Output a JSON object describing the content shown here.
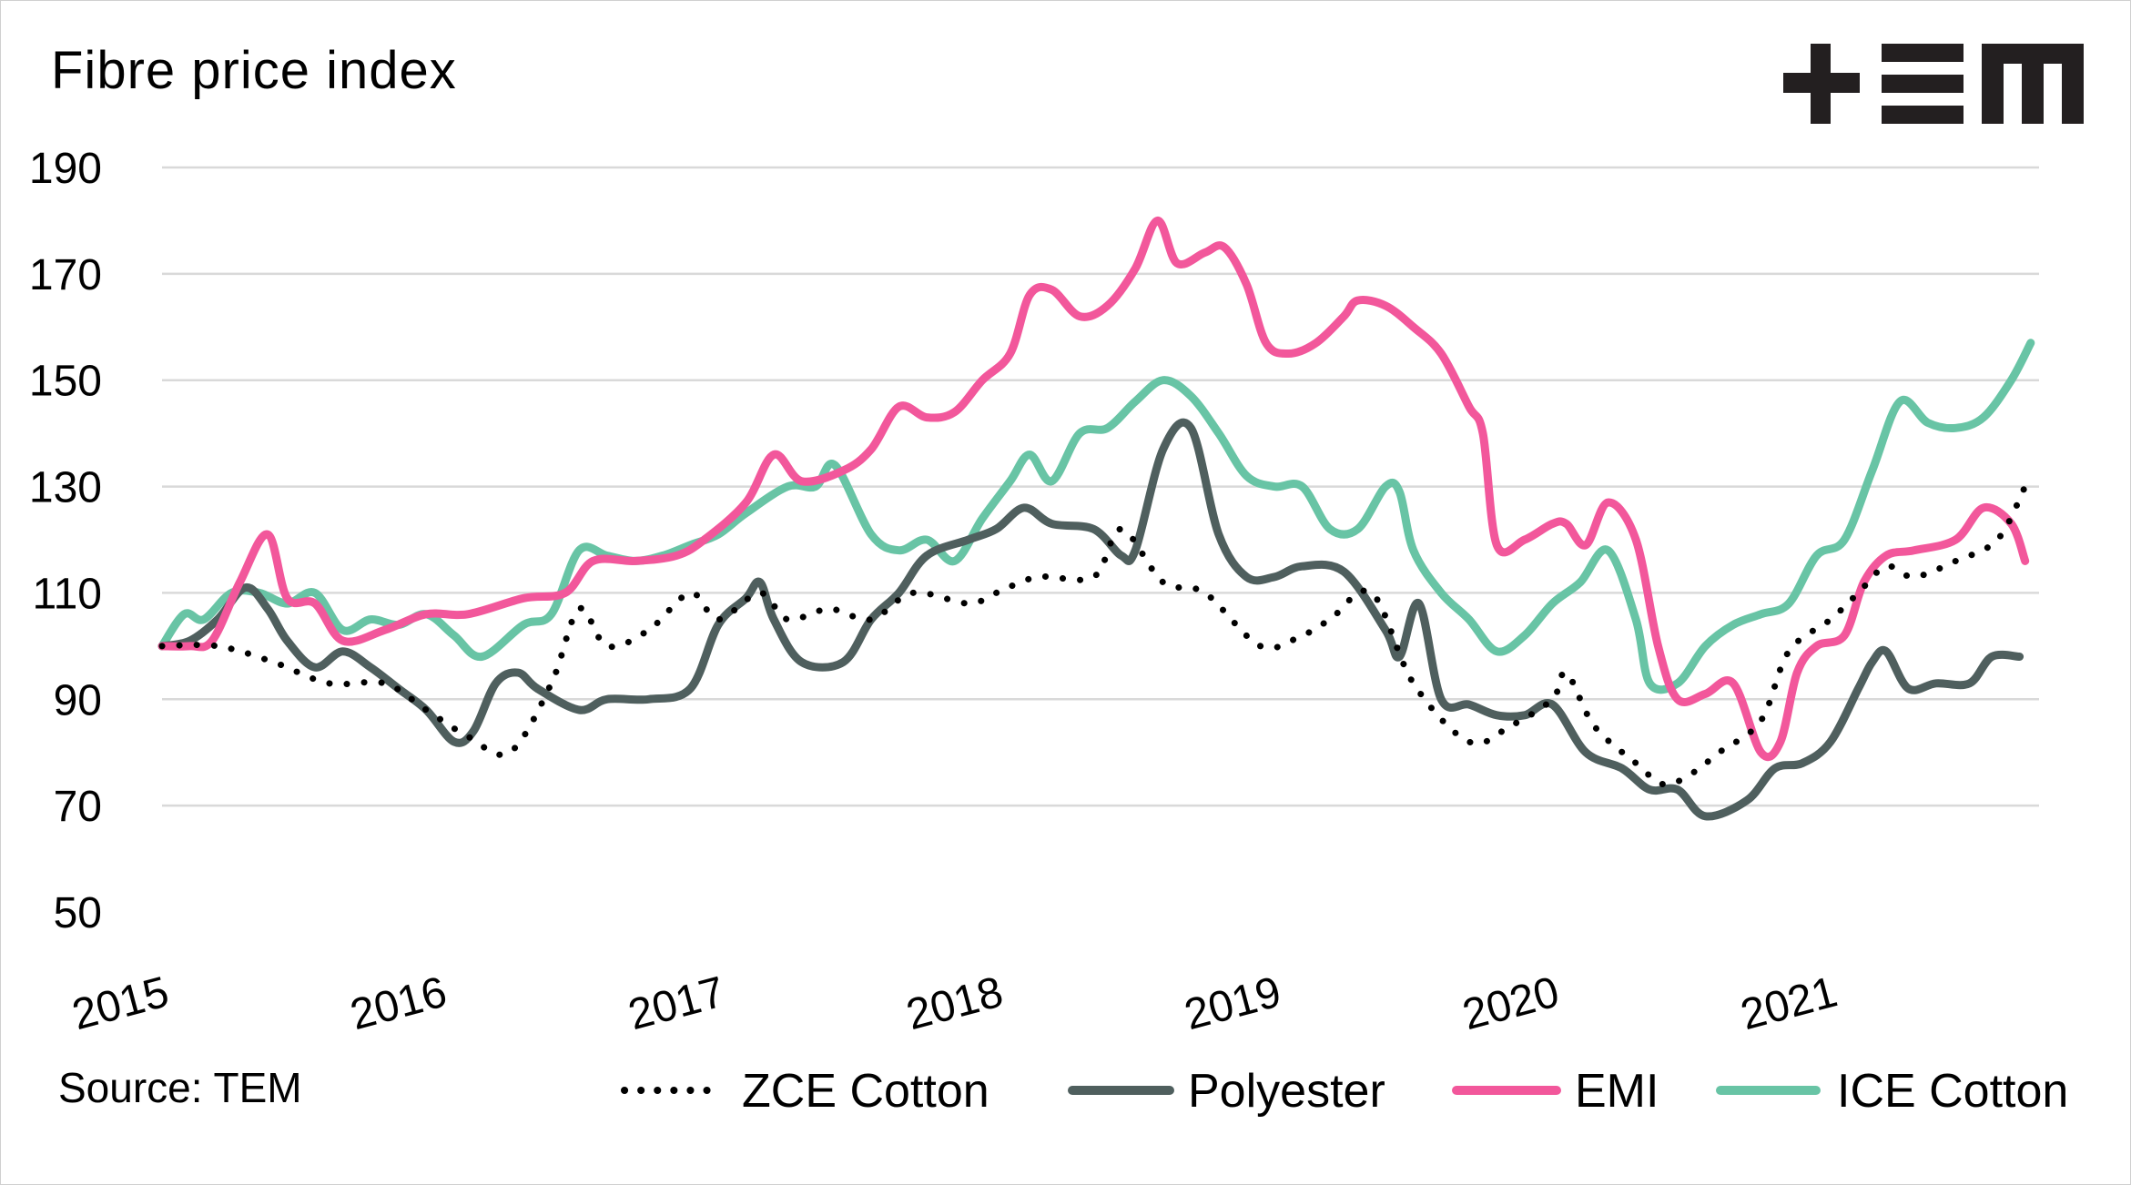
{
  "header": {
    "title": "Fibre price index"
  },
  "brand": {
    "logo_icon": "tem-logo-icon",
    "logo_color": "#231f20"
  },
  "footer": {
    "source": "Source: TEM"
  },
  "chart_data": {
    "type": "line",
    "title": "Fibre price index",
    "xlabel": "",
    "ylabel": "",
    "xlim": [
      2015,
      2021.75
    ],
    "ylim": [
      50,
      190
    ],
    "y_ticks": [
      190,
      170,
      150,
      130,
      110,
      90,
      70,
      50
    ],
    "x_ticks": [
      2015,
      2016,
      2017,
      2018,
      2019,
      2020,
      2021
    ],
    "grid": "horizontal",
    "legend_position": "bottom",
    "series": [
      {
        "name": "ZCE Cotton",
        "color": "#000000",
        "style": "dotted",
        "points": [
          [
            2015.0,
            100
          ],
          [
            2015.2,
            100
          ],
          [
            2015.4,
            97
          ],
          [
            2015.6,
            93
          ],
          [
            2015.8,
            93
          ],
          [
            2015.95,
            88
          ],
          [
            2016.1,
            83
          ],
          [
            2016.25,
            80
          ],
          [
            2016.4,
            93
          ],
          [
            2016.5,
            107
          ],
          [
            2016.6,
            100
          ],
          [
            2016.75,
            103
          ],
          [
            2016.9,
            110
          ],
          [
            2017.0,
            105
          ],
          [
            2017.15,
            110
          ],
          [
            2017.25,
            105
          ],
          [
            2017.4,
            107
          ],
          [
            2017.55,
            105
          ],
          [
            2017.7,
            110
          ],
          [
            2017.9,
            108
          ],
          [
            2018.0,
            110
          ],
          [
            2018.15,
            113
          ],
          [
            2018.35,
            113
          ],
          [
            2018.45,
            122
          ],
          [
            2018.6,
            112
          ],
          [
            2018.75,
            110
          ],
          [
            2018.95,
            100
          ],
          [
            2019.1,
            102
          ],
          [
            2019.2,
            105
          ],
          [
            2019.35,
            110
          ],
          [
            2019.5,
            93
          ],
          [
            2019.7,
            82
          ],
          [
            2019.85,
            85
          ],
          [
            2020.0,
            90
          ],
          [
            2020.05,
            95
          ],
          [
            2020.15,
            85
          ],
          [
            2020.3,
            78
          ],
          [
            2020.4,
            74
          ],
          [
            2020.5,
            76
          ],
          [
            2020.6,
            80
          ],
          [
            2020.75,
            86
          ],
          [
            2020.85,
            99
          ],
          [
            2021.0,
            105
          ],
          [
            2021.1,
            110
          ],
          [
            2021.2,
            115
          ],
          [
            2021.3,
            113
          ],
          [
            2021.45,
            116
          ],
          [
            2021.6,
            120
          ],
          [
            2021.7,
            130
          ]
        ]
      },
      {
        "name": "Polyester",
        "color": "#4f5f5e",
        "style": "solid",
        "points": [
          [
            2015.0,
            100
          ],
          [
            2015.1,
            101
          ],
          [
            2015.2,
            105
          ],
          [
            2015.3,
            111
          ],
          [
            2015.38,
            107
          ],
          [
            2015.45,
            101
          ],
          [
            2015.55,
            96
          ],
          [
            2015.65,
            99
          ],
          [
            2015.75,
            96
          ],
          [
            2015.85,
            92
          ],
          [
            2015.95,
            88
          ],
          [
            2016.05,
            82
          ],
          [
            2016.12,
            84
          ],
          [
            2016.2,
            93
          ],
          [
            2016.28,
            95
          ],
          [
            2016.35,
            92
          ],
          [
            2016.5,
            88
          ],
          [
            2016.6,
            90
          ],
          [
            2016.75,
            90
          ],
          [
            2016.9,
            92
          ],
          [
            2017.0,
            104
          ],
          [
            2017.1,
            109
          ],
          [
            2017.15,
            112
          ],
          [
            2017.2,
            105
          ],
          [
            2017.3,
            97
          ],
          [
            2017.45,
            97
          ],
          [
            2017.55,
            105
          ],
          [
            2017.65,
            110
          ],
          [
            2017.75,
            117
          ],
          [
            2017.9,
            120
          ],
          [
            2018.0,
            122
          ],
          [
            2018.1,
            126
          ],
          [
            2018.2,
            123
          ],
          [
            2018.35,
            122
          ],
          [
            2018.45,
            117
          ],
          [
            2018.5,
            118
          ],
          [
            2018.6,
            137
          ],
          [
            2018.7,
            141
          ],
          [
            2018.8,
            121
          ],
          [
            2018.9,
            113
          ],
          [
            2019.0,
            113
          ],
          [
            2019.1,
            115
          ],
          [
            2019.25,
            114
          ],
          [
            2019.4,
            103
          ],
          [
            2019.45,
            98
          ],
          [
            2019.52,
            108
          ],
          [
            2019.6,
            90
          ],
          [
            2019.7,
            89
          ],
          [
            2019.8,
            87
          ],
          [
            2019.9,
            87
          ],
          [
            2020.0,
            89
          ],
          [
            2020.12,
            80
          ],
          [
            2020.25,
            77
          ],
          [
            2020.35,
            73
          ],
          [
            2020.45,
            73
          ],
          [
            2020.55,
            68
          ],
          [
            2020.7,
            71
          ],
          [
            2020.8,
            77
          ],
          [
            2020.9,
            78
          ],
          [
            2021.0,
            82
          ],
          [
            2021.1,
            92
          ],
          [
            2021.15,
            97
          ],
          [
            2021.2,
            99
          ],
          [
            2021.28,
            92
          ],
          [
            2021.38,
            93
          ],
          [
            2021.5,
            93
          ],
          [
            2021.58,
            98
          ],
          [
            2021.68,
            98
          ]
        ]
      },
      {
        "name": "EMI",
        "color": "#f2579b",
        "style": "solid",
        "points": [
          [
            2015.0,
            100
          ],
          [
            2015.1,
            100
          ],
          [
            2015.18,
            101
          ],
          [
            2015.28,
            112
          ],
          [
            2015.38,
            121
          ],
          [
            2015.45,
            109
          ],
          [
            2015.55,
            108
          ],
          [
            2015.65,
            101
          ],
          [
            2015.8,
            103
          ],
          [
            2015.95,
            106
          ],
          [
            2016.1,
            106
          ],
          [
            2016.3,
            109
          ],
          [
            2016.45,
            110
          ],
          [
            2016.55,
            116
          ],
          [
            2016.7,
            116
          ],
          [
            2016.85,
            117
          ],
          [
            2016.95,
            120
          ],
          [
            2017.1,
            127
          ],
          [
            2017.2,
            136
          ],
          [
            2017.3,
            131
          ],
          [
            2017.45,
            133
          ],
          [
            2017.55,
            137
          ],
          [
            2017.65,
            145
          ],
          [
            2017.75,
            143
          ],
          [
            2017.85,
            144
          ],
          [
            2017.95,
            150
          ],
          [
            2018.05,
            155
          ],
          [
            2018.12,
            166
          ],
          [
            2018.2,
            167
          ],
          [
            2018.3,
            162
          ],
          [
            2018.4,
            164
          ],
          [
            2018.5,
            171
          ],
          [
            2018.58,
            180
          ],
          [
            2018.65,
            172
          ],
          [
            2018.75,
            174
          ],
          [
            2018.82,
            175
          ],
          [
            2018.9,
            168
          ],
          [
            2018.97,
            157
          ],
          [
            2019.05,
            155
          ],
          [
            2019.15,
            157
          ],
          [
            2019.25,
            162
          ],
          [
            2019.3,
            165
          ],
          [
            2019.4,
            164
          ],
          [
            2019.5,
            160
          ],
          [
            2019.6,
            155
          ],
          [
            2019.7,
            145
          ],
          [
            2019.75,
            140
          ],
          [
            2019.8,
            119
          ],
          [
            2019.9,
            120
          ],
          [
            2020.0,
            123
          ],
          [
            2020.05,
            123
          ],
          [
            2020.12,
            119
          ],
          [
            2020.2,
            127
          ],
          [
            2020.3,
            120
          ],
          [
            2020.38,
            100
          ],
          [
            2020.45,
            90
          ],
          [
            2020.55,
            91
          ],
          [
            2020.65,
            93
          ],
          [
            2020.75,
            80
          ],
          [
            2020.82,
            82
          ],
          [
            2020.88,
            95
          ],
          [
            2020.95,
            100
          ],
          [
            2021.05,
            102
          ],
          [
            2021.12,
            112
          ],
          [
            2021.2,
            117
          ],
          [
            2021.3,
            118
          ],
          [
            2021.45,
            120
          ],
          [
            2021.55,
            126
          ],
          [
            2021.65,
            123
          ],
          [
            2021.7,
            116
          ]
        ]
      },
      {
        "name": "ICE Cotton",
        "color": "#68c4a5",
        "style": "solid",
        "points": [
          [
            2015.0,
            100
          ],
          [
            2015.08,
            106
          ],
          [
            2015.15,
            105
          ],
          [
            2015.25,
            110
          ],
          [
            2015.35,
            110
          ],
          [
            2015.45,
            108
          ],
          [
            2015.55,
            110
          ],
          [
            2015.65,
            103
          ],
          [
            2015.75,
            105
          ],
          [
            2015.85,
            104
          ],
          [
            2015.95,
            106
          ],
          [
            2016.05,
            102
          ],
          [
            2016.15,
            98
          ],
          [
            2016.3,
            104
          ],
          [
            2016.4,
            106
          ],
          [
            2016.5,
            118
          ],
          [
            2016.6,
            117
          ],
          [
            2016.7,
            116
          ],
          [
            2016.8,
            117
          ],
          [
            2016.9,
            119
          ],
          [
            2017.0,
            121
          ],
          [
            2017.1,
            125
          ],
          [
            2017.25,
            130
          ],
          [
            2017.35,
            130
          ],
          [
            2017.42,
            134
          ],
          [
            2017.55,
            121
          ],
          [
            2017.65,
            118
          ],
          [
            2017.75,
            120
          ],
          [
            2017.85,
            116
          ],
          [
            2017.95,
            124
          ],
          [
            2018.05,
            131
          ],
          [
            2018.12,
            136
          ],
          [
            2018.2,
            131
          ],
          [
            2018.3,
            140
          ],
          [
            2018.4,
            141
          ],
          [
            2018.5,
            146
          ],
          [
            2018.6,
            150
          ],
          [
            2018.7,
            147
          ],
          [
            2018.8,
            140
          ],
          [
            2018.9,
            132
          ],
          [
            2019.0,
            130
          ],
          [
            2019.1,
            130
          ],
          [
            2019.2,
            122
          ],
          [
            2019.3,
            122
          ],
          [
            2019.4,
            130
          ],
          [
            2019.45,
            129
          ],
          [
            2019.5,
            118
          ],
          [
            2019.6,
            110
          ],
          [
            2019.7,
            105
          ],
          [
            2019.8,
            99
          ],
          [
            2019.9,
            102
          ],
          [
            2020.0,
            108
          ],
          [
            2020.1,
            112
          ],
          [
            2020.2,
            118
          ],
          [
            2020.3,
            105
          ],
          [
            2020.35,
            93
          ],
          [
            2020.45,
            93
          ],
          [
            2020.55,
            100
          ],
          [
            2020.65,
            104
          ],
          [
            2020.75,
            106
          ],
          [
            2020.85,
            108
          ],
          [
            2020.95,
            117
          ],
          [
            2021.05,
            120
          ],
          [
            2021.15,
            133
          ],
          [
            2021.25,
            146
          ],
          [
            2021.35,
            142
          ],
          [
            2021.45,
            141
          ],
          [
            2021.55,
            143
          ],
          [
            2021.65,
            150
          ],
          [
            2021.72,
            157
          ]
        ]
      }
    ]
  }
}
